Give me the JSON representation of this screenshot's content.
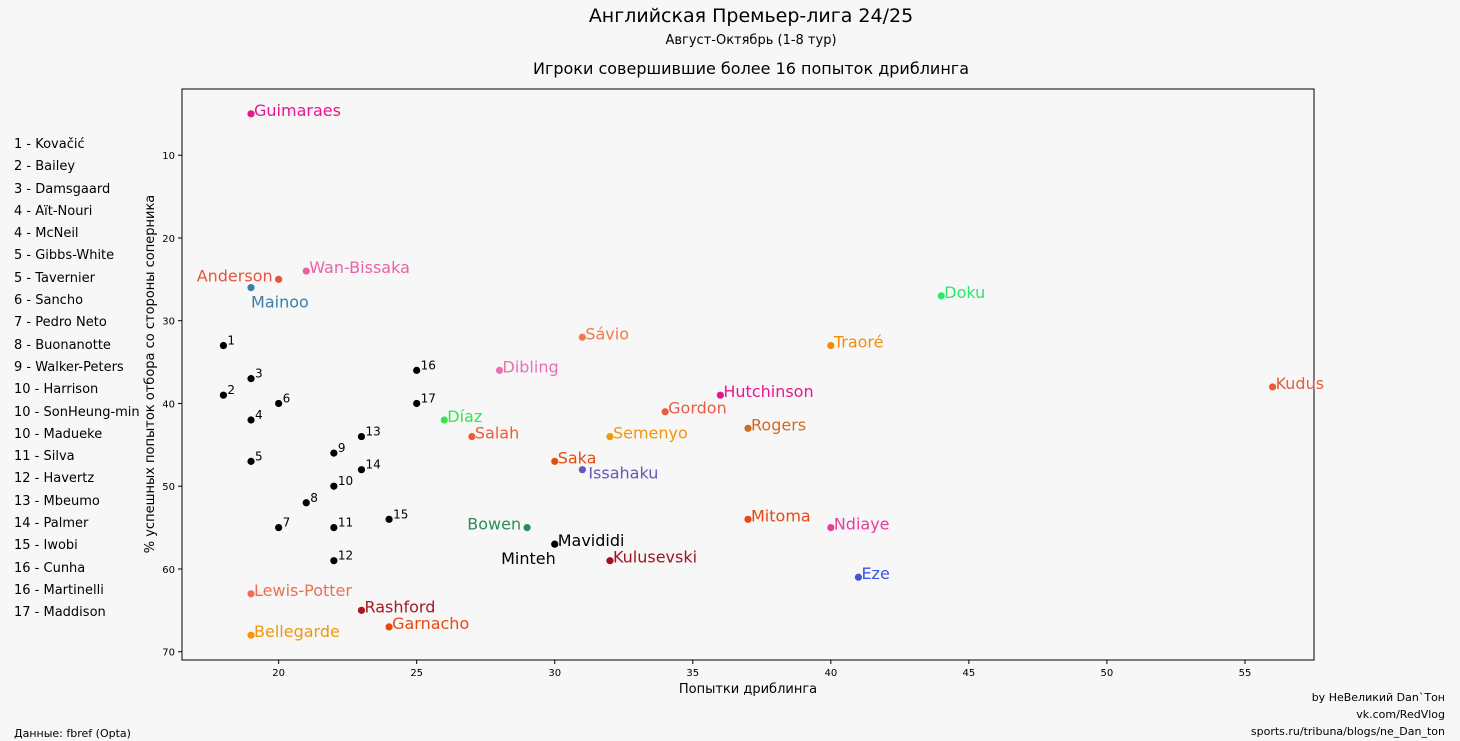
{
  "chart_data": {
    "type": "scatter",
    "title": "Английская Премьер-лига 24/25",
    "subtitle": "Август-Октябрь (1-8 тур)",
    "plot_title": "Игроки совершившие более 16 попыток дриблинга",
    "xlabel": "Попытки дриблинга",
    "ylabel": "% успешных попыток отбора со стороны соперника",
    "xlim": [
      16.5,
      57.5
    ],
    "ylim": [
      71,
      2
    ],
    "y_inverted": true,
    "x_ticks": [
      20,
      25,
      30,
      35,
      40,
      45,
      50,
      55
    ],
    "y_ticks": [
      10,
      20,
      30,
      40,
      50,
      60,
      70
    ],
    "grid": false,
    "named_points": [
      {
        "label": "Guimaraes",
        "x": 19,
        "y": 5,
        "color": "#e8168f",
        "anchor": "right"
      },
      {
        "label": "Anderson",
        "x": 20,
        "y": 25,
        "color": "#e8533d",
        "anchor": "left"
      },
      {
        "label": "Wan-Bissaka",
        "x": 21,
        "y": 24,
        "color": "#ee5fa5",
        "anchor": "right"
      },
      {
        "label": "Mainoo",
        "x": 19,
        "y": 26,
        "color": "#3b7ea8",
        "anchor": "below"
      },
      {
        "label": "Doku",
        "x": 44,
        "y": 27,
        "color": "#2ee66b",
        "anchor": "right"
      },
      {
        "label": "Sávio",
        "x": 31,
        "y": 32,
        "color": "#ef7a4a",
        "anchor": "right"
      },
      {
        "label": "Traoré",
        "x": 40,
        "y": 33,
        "color": "#f28c0a",
        "anchor": "right"
      },
      {
        "label": "Dibling",
        "x": 28,
        "y": 36,
        "color": "#ee6fb0",
        "anchor": "right"
      },
      {
        "label": "Kudus",
        "x": 56,
        "y": 38,
        "color": "#ea5b3a",
        "anchor": "right"
      },
      {
        "label": "Hutchinson",
        "x": 36,
        "y": 39,
        "color": "#e8168f",
        "anchor": "right"
      },
      {
        "label": "Gordon",
        "x": 34,
        "y": 41,
        "color": "#ea5b44",
        "anchor": "right"
      },
      {
        "label": "Díaz",
        "x": 26,
        "y": 42,
        "color": "#33e64d",
        "anchor": "right"
      },
      {
        "label": "Rogers",
        "x": 37,
        "y": 43,
        "color": "#d26a1e",
        "anchor": "right"
      },
      {
        "label": "Salah",
        "x": 27,
        "y": 44,
        "color": "#ea5b3a",
        "anchor": "right"
      },
      {
        "label": "Semenyo",
        "x": 32,
        "y": 44,
        "color": "#f2960a",
        "anchor": "right"
      },
      {
        "label": "Saka",
        "x": 30,
        "y": 47,
        "color": "#ea4a0f",
        "anchor": "right"
      },
      {
        "label": "Issahaku",
        "x": 31,
        "y": 48,
        "color": "#6a55b8",
        "anchor": "right-below"
      },
      {
        "label": "Mitoma",
        "x": 37,
        "y": 54,
        "color": "#e8480f",
        "anchor": "right"
      },
      {
        "label": "Ndiaye",
        "x": 40,
        "y": 55,
        "color": "#e63f9a",
        "anchor": "right"
      },
      {
        "label": "Bowen",
        "x": 29,
        "y": 55,
        "color": "#2e8b57",
        "anchor": "left"
      },
      {
        "label": "Mavididi",
        "x": 30,
        "y": 57,
        "color": "#000000",
        "anchor": "right"
      },
      {
        "label": "Minteh",
        "x": 30,
        "y": 57,
        "color": "#000000",
        "anchor": "left-below",
        "no_marker": true
      },
      {
        "label": "Kulusevski",
        "x": 32,
        "y": 59,
        "color": "#a0131e",
        "anchor": "right"
      },
      {
        "label": "Eze",
        "x": 41,
        "y": 61,
        "color": "#3b56e0",
        "anchor": "right"
      },
      {
        "label": "Lewis-Potter",
        "x": 19,
        "y": 63,
        "color": "#ee6e54",
        "anchor": "right"
      },
      {
        "label": "Rashford",
        "x": 23,
        "y": 65,
        "color": "#a8191e",
        "anchor": "right"
      },
      {
        "label": "Garnacho",
        "x": 24,
        "y": 67,
        "color": "#e8480f",
        "anchor": "right"
      },
      {
        "label": "Bellegarde",
        "x": 19,
        "y": 68,
        "color": "#f2960a",
        "anchor": "right"
      }
    ],
    "numbered_points": [
      {
        "label": "1",
        "x": 18,
        "y": 33
      },
      {
        "label": "2",
        "x": 18,
        "y": 39
      },
      {
        "label": "3",
        "x": 19,
        "y": 37
      },
      {
        "label": "4",
        "x": 19,
        "y": 42
      },
      {
        "label": "5",
        "x": 19,
        "y": 47
      },
      {
        "label": "6",
        "x": 20,
        "y": 40
      },
      {
        "label": "7",
        "x": 20,
        "y": 55
      },
      {
        "label": "8",
        "x": 21,
        "y": 52
      },
      {
        "label": "9",
        "x": 22,
        "y": 46
      },
      {
        "label": "10",
        "x": 22,
        "y": 50
      },
      {
        "label": "11",
        "x": 22,
        "y": 55
      },
      {
        "label": "12",
        "x": 22,
        "y": 59
      },
      {
        "label": "13",
        "x": 23,
        "y": 44
      },
      {
        "label": "14",
        "x": 23,
        "y": 48
      },
      {
        "label": "15",
        "x": 24,
        "y": 54
      },
      {
        "label": "16",
        "x": 25,
        "y": 36
      },
      {
        "label": "17",
        "x": 25,
        "y": 40
      }
    ],
    "numbered_color": "#000000"
  },
  "legend_list": [
    "1 - Kovačić",
    "2 - Bailey",
    "3 - Damsgaard",
    "4 - Aït-Nouri",
    "4 - McNeil",
    "5 - Gibbs-White",
    "5 - Tavernier",
    "6 - Sancho",
    "7 - Pedro Neto",
    "8 - Buonanotte",
    "9 - Walker-Peters",
    "10 - Harrison",
    "10 - SonHeung-min",
    "10 - Madueke",
    "11 - Silva",
    "12 - Havertz",
    "13 - Mbeumo",
    "14 - Palmer",
    "15 - Iwobi",
    "16 - Cunha",
    "16 - Martinelli",
    "17 - Maddison"
  ],
  "footer": {
    "source": "Данные: fbref (Opta)",
    "credits": [
      "by НеВеликий Dan`Тон",
      "vk.com/RedVlog",
      "sports.ru/tribuna/blogs/ne_Dan_ton"
    ]
  }
}
